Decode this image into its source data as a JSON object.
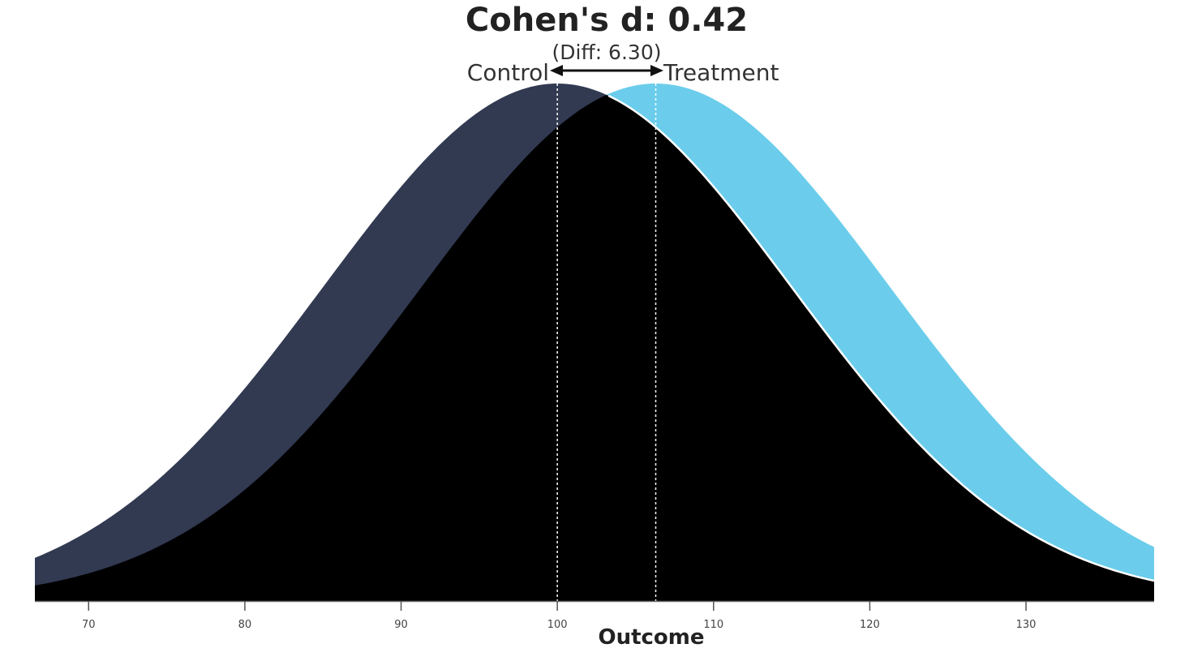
{
  "chart_data": {
    "type": "area",
    "title": "Cohen's d: 0.42",
    "subtitle": "(Diff: 6.30)",
    "xlabel": "Outcome",
    "ylabel": "",
    "xlim": [
      66.56,
      138.2
    ],
    "x_ticks": [
      70,
      80,
      90,
      100,
      110,
      120,
      130
    ],
    "x_tick_labels": [
      "70",
      "80",
      "90",
      "100",
      "110",
      "120",
      "130"
    ],
    "grid": false,
    "legend": "inline labels above peaks",
    "series": [
      {
        "name": "Control",
        "distribution": "normal",
        "mean": 100,
        "sd": 15,
        "color": "#323a52"
      },
      {
        "name": "Treatment",
        "distribution": "normal",
        "mean": 106.3,
        "sd": 15,
        "color": "#6bcdeb"
      }
    ],
    "overlap_color": "#000000",
    "effect_size": 0.42,
    "mean_difference": 6.3,
    "annotations": [
      "double-headed arrow between means",
      "dotted vertical lines at means 100 and 106.3"
    ]
  },
  "labels": {
    "title": "Cohen's d: 0.42",
    "subtitle": "(Diff: 6.30)",
    "control": "Control",
    "treatment": "Treatment",
    "xlabel": "Outcome"
  }
}
